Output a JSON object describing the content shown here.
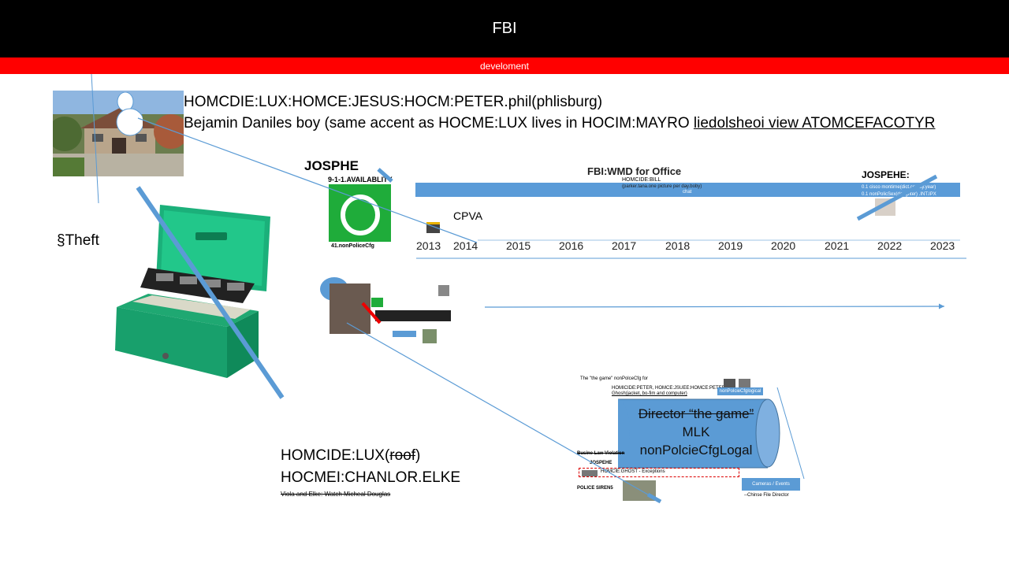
{
  "slide": {
    "title": "FBI",
    "subtitle": "develoment"
  },
  "texts": {
    "homicide_line1": "HOMCDIE:LUX:HOMCE:JESUS:HOCM:PETER.phil(phlisburg)",
    "homicide_line2_a": "Bejamin Daniles boy (same accent as HOCME:LUX lives in HOCIM:MAYRO ",
    "homicide_line2_b": "liedolsheoi view ATOMCEFACOTYR",
    "theft": "§Theft",
    "josphe": "JOSPHE",
    "availability": "9-1-1.AVAILABLITY",
    "nonpolice_cfg": "41.nonPoliceCfg",
    "cpva": "CPVA",
    "fbi_wmd": "FBI:WMD for Office",
    "homcide_bill": "HOMCIDE:BILL",
    "parker_line": "(parker.tana.one picture per day.boby)",
    "chat": "chat",
    "jospehe": "JOSPEHE:",
    "cisco_line": "0.1 cisco montirne(dict.county.year)",
    "nonpolice_line": "0.1 nonPolicSex(daughter) .INT.IPX",
    "bottom_left_1a": "HOMCIDE:LUX(",
    "bottom_left_1b": "roof",
    "bottom_left_1c": ")",
    "bottom_left_2": "HOCMEI:CHANLOR.ELKE",
    "bottom_left_3": "Viola and Elke: Watch Micheal Douglas",
    "game_top": "The \"the game\" nonPolceCfg for",
    "game_names": "HOMICIDE:PETER, HOMCE:JSUEE:HOMCE:PETER",
    "game_ghosh": "Ghosh(jacket, bo-fim and computer)",
    "game_badge": "nonPolcieCfglogical",
    "cyl_line1": "Director “the game”",
    "cyl_line2": "MLK",
    "cyl_line3": "nonPolcieCfgLogal",
    "busine_law": "Busine Law Violation",
    "jospehe_small": "JOSPEHE",
    "homcie_ghost": "HOMCIE:GHOST - Exceptions",
    "police_sirens": "POLICE SIREN5",
    "chinese_file": "--Chinse File Director",
    "blue_box_label": "Cameras / Events"
  },
  "timeline": {
    "years": [
      "2013",
      "2014",
      "2015",
      "2016",
      "2017",
      "2018",
      "2019",
      "2020",
      "2021",
      "2022",
      "2023"
    ]
  },
  "colors": {
    "title_bg": "#000000",
    "subtitle_bg": "#ff0000",
    "green_box": "#1fac3a",
    "blue": "#5b9bd5",
    "bar_blue": "#5a9bd8"
  },
  "icons": {
    "cash_box": "cash-box-icon",
    "house": "house-photo-icon",
    "person": "person-silhouette-icon",
    "green_o": "letter-o-icon",
    "cylinder": "cylinder-shape",
    "arrow": "arrow-right-icon"
  }
}
